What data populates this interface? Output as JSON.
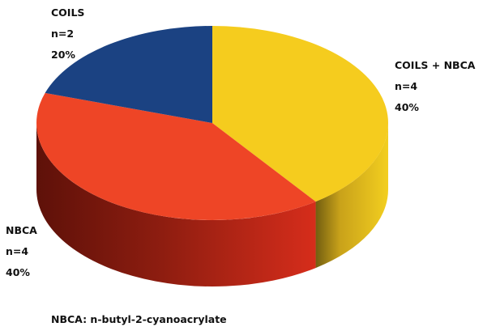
{
  "chart_data": {
    "type": "pie",
    "categories": [
      "COILS",
      "COILS + NBCA",
      "NBCA"
    ],
    "values": [
      20,
      40,
      40
    ],
    "slices": [
      {
        "name": "COILS",
        "n_label": "n=2",
        "pct_label": "20%",
        "value": 20,
        "color": "#1b4282"
      },
      {
        "name": "COILS + NBCA",
        "n_label": "n=4",
        "pct_label": "40%",
        "value": 40,
        "color": "#f5cc1e"
      },
      {
        "name": "NBCA",
        "n_label": "n=4",
        "pct_label": "40%",
        "value": 40,
        "color": "#ee4526"
      }
    ],
    "style": "3d",
    "footnote": "NBCA: n-butyl-2-cyanoacrylate"
  }
}
